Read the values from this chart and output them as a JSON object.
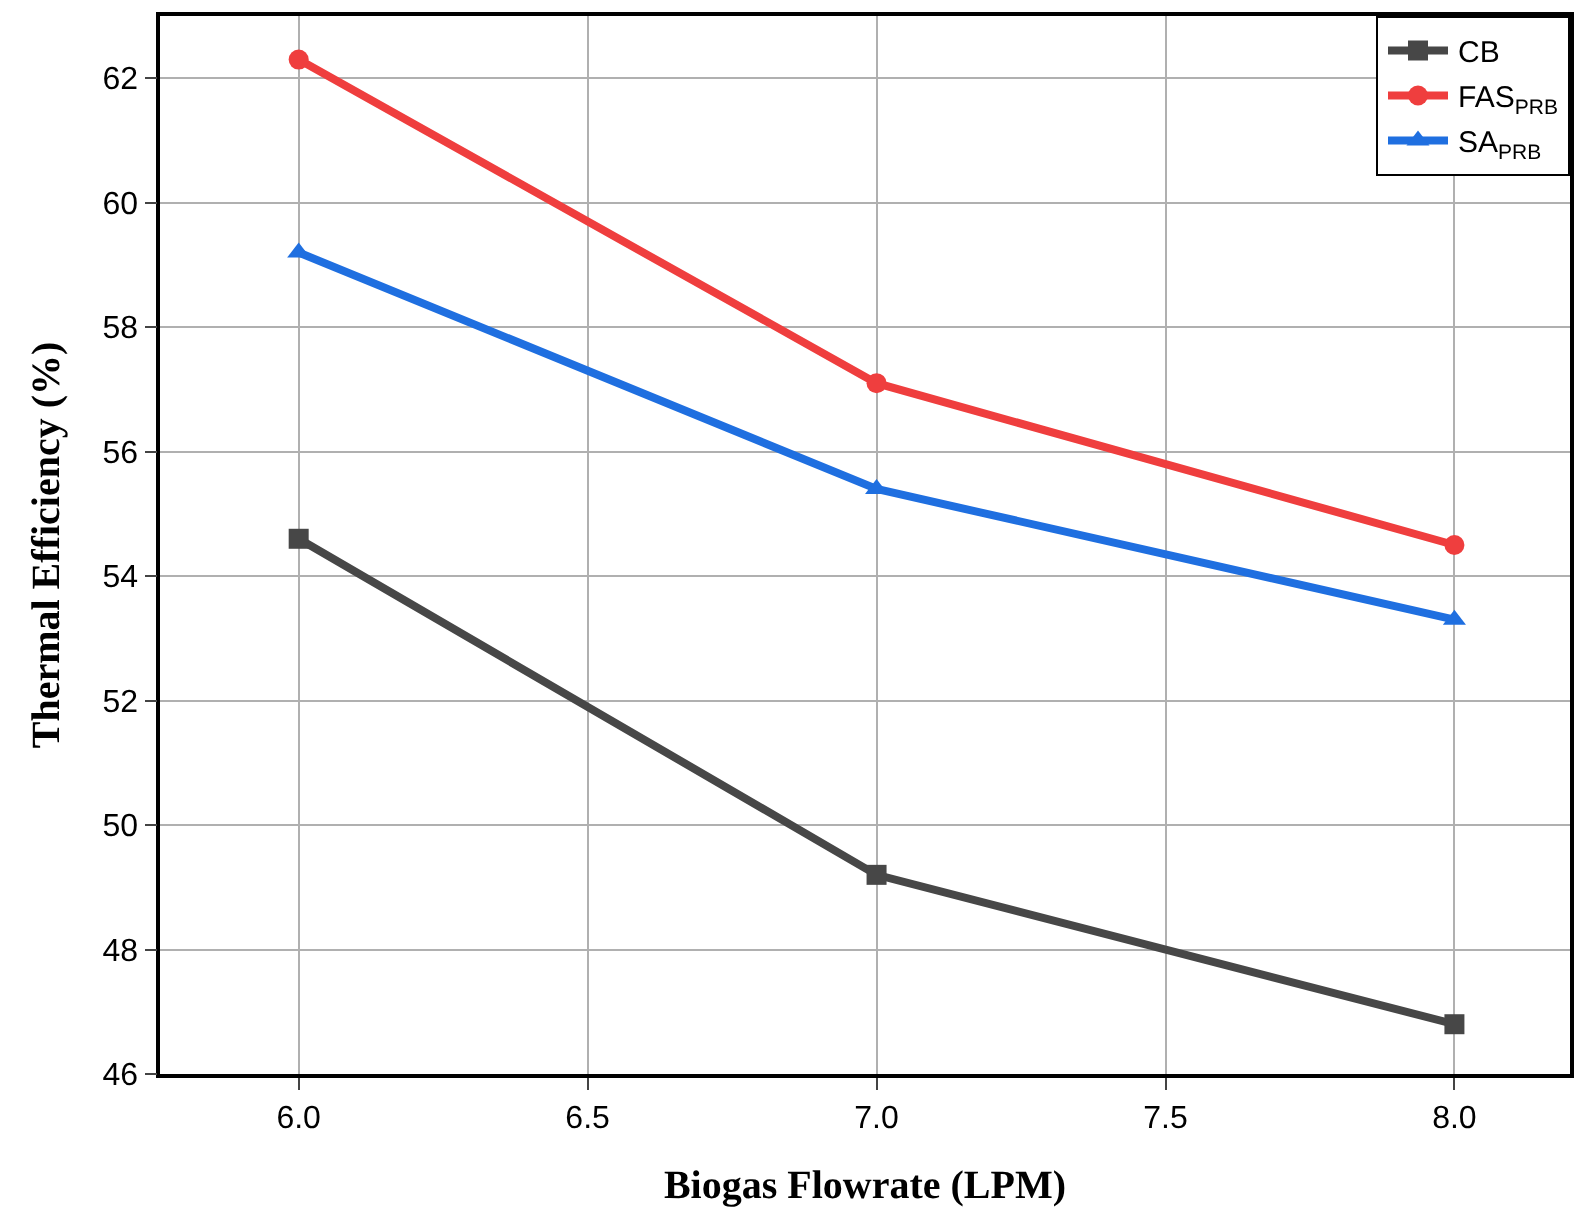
{
  "chart_data": {
    "type": "line",
    "xlabel": "Biogas Flowrate (LPM)",
    "ylabel": "Thermal Efficiency (%)",
    "x": [
      6.0,
      7.0,
      8.0
    ],
    "series": [
      {
        "name": "CB",
        "color": "#474747",
        "marker": "square",
        "values": [
          54.6,
          49.2,
          46.8
        ]
      },
      {
        "name": "FAS$_{PRB}$",
        "color": "#ef3e3e",
        "marker": "circle",
        "values": [
          62.3,
          57.1,
          54.5
        ]
      },
      {
        "name": "SA$_{PRB}$",
        "color": "#1f6fe0",
        "marker": "triangle",
        "values": [
          59.2,
          55.4,
          53.3
        ]
      }
    ],
    "xlim": [
      5.76,
      8.2
    ],
    "xticks": [
      {
        "value": 6,
        "label": "6.0"
      },
      {
        "value": 6.5,
        "label": "6.5"
      },
      {
        "value": 7,
        "label": "7.0"
      },
      {
        "value": 7.5,
        "label": "7.5"
      },
      {
        "value": 8,
        "label": "8.0"
      }
    ],
    "ylim": [
      46,
      63
    ],
    "yticks": [
      46,
      48,
      50,
      52,
      54,
      56,
      58,
      60,
      62
    ],
    "grid": true,
    "legend": "top right",
    "line_style": "solid"
  }
}
